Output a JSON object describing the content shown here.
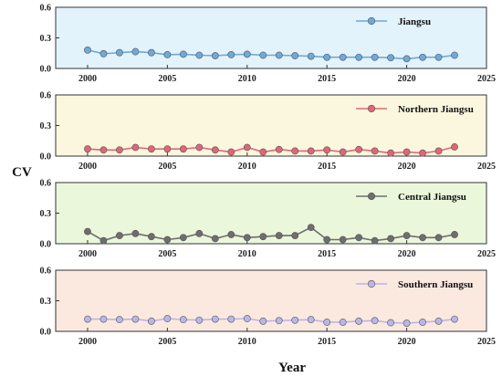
{
  "chart_data": {
    "type": "line",
    "xlabel": "Year",
    "ylabel": "CV",
    "xlim": [
      1998,
      2025
    ],
    "x_ticks": [
      2000,
      2005,
      2010,
      2015,
      2020,
      2025
    ],
    "ylim": [
      0,
      0.6
    ],
    "y_ticks": [
      0.0,
      0.3,
      0.6
    ],
    "legend_placement": "top-right",
    "grid": false,
    "x": [
      2000,
      2001,
      2002,
      2003,
      2004,
      2005,
      2006,
      2007,
      2008,
      2009,
      2010,
      2011,
      2012,
      2013,
      2014,
      2015,
      2016,
      2017,
      2018,
      2019,
      2020,
      2021,
      2022,
      2023
    ],
    "series": [
      {
        "name": "Jiangsu",
        "color": "#6fa8dc",
        "background": "#e2f3fb",
        "values": [
          0.18,
          0.145,
          0.155,
          0.165,
          0.155,
          0.135,
          0.14,
          0.13,
          0.125,
          0.135,
          0.14,
          0.13,
          0.13,
          0.125,
          0.12,
          0.11,
          0.11,
          0.11,
          0.11,
          0.105,
          0.095,
          0.11,
          0.11,
          0.13
        ]
      },
      {
        "name": "Northern Jiangsu",
        "color": "#e06677",
        "background": "#fbf7de",
        "values": [
          0.07,
          0.06,
          0.06,
          0.085,
          0.07,
          0.07,
          0.07,
          0.085,
          0.06,
          0.04,
          0.085,
          0.04,
          0.065,
          0.05,
          0.05,
          0.06,
          0.04,
          0.065,
          0.05,
          0.03,
          0.04,
          0.03,
          0.05,
          0.09
        ]
      },
      {
        "name": "Central Jiangsu",
        "color": "#6e6e6e",
        "background": "#eaf7db",
        "values": [
          0.12,
          0.03,
          0.08,
          0.1,
          0.07,
          0.04,
          0.06,
          0.1,
          0.05,
          0.09,
          0.06,
          0.07,
          0.08,
          0.08,
          0.16,
          0.04,
          0.04,
          0.06,
          0.03,
          0.05,
          0.08,
          0.06,
          0.06,
          0.09
        ]
      },
      {
        "name": "Southern Jiangsu",
        "color": "#b9b6e8",
        "background": "#fbe9df",
        "values": [
          0.12,
          0.12,
          0.115,
          0.12,
          0.1,
          0.125,
          0.115,
          0.11,
          0.12,
          0.12,
          0.125,
          0.1,
          0.105,
          0.11,
          0.115,
          0.09,
          0.09,
          0.1,
          0.105,
          0.085,
          0.08,
          0.09,
          0.1,
          0.12
        ]
      }
    ]
  }
}
